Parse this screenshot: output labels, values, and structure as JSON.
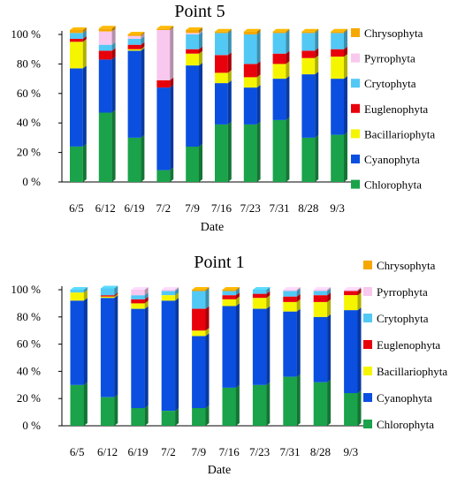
{
  "chart_data": [
    {
      "type": "bar",
      "stacked": true,
      "title": "Point 5",
      "xlabel": "Date",
      "ylabel": "",
      "ylim": [
        0,
        100
      ],
      "y_ticks": [
        "0 %",
        "20 %",
        "40 %",
        "60 %",
        "80 %",
        "100 %"
      ],
      "legend_position": "right",
      "categories": [
        "6/5",
        "6/12",
        "6/19",
        "7/2",
        "7/9",
        "7/16",
        "7/23",
        "7/31",
        "8/28",
        "9/3"
      ],
      "series": [
        {
          "name": "Chlorophyta",
          "color": "#1aa34a",
          "values": [
            24,
            47,
            30,
            8,
            24,
            39,
            39,
            42,
            30,
            32
          ]
        },
        {
          "name": "Cyanophyta",
          "color": "#0a4fe0",
          "values": [
            53,
            36,
            59,
            56,
            55,
            28,
            25,
            28,
            43,
            38
          ]
        },
        {
          "name": "Bacillariophyta",
          "color": "#f5f500",
          "values": [
            18,
            0,
            1,
            0,
            8,
            7,
            7,
            10,
            11,
            15
          ]
        },
        {
          "name": "Euglenophyta",
          "color": "#e8000b",
          "values": [
            2,
            6,
            3,
            5,
            3,
            12,
            9,
            7,
            5,
            5
          ]
        },
        {
          "name": "Crytophyta",
          "color": "#52c8f5",
          "values": [
            4,
            4,
            4,
            0,
            10,
            15,
            20,
            14,
            12,
            11
          ]
        },
        {
          "name": "Pyrrophyta",
          "color": "#f8c8ee",
          "values": [
            0,
            9,
            2,
            34,
            1,
            0,
            0,
            0,
            0,
            0
          ]
        },
        {
          "name": "Chrysophyta",
          "color": "#f5a800",
          "values": [
            2,
            2,
            1,
            1,
            2,
            1,
            2,
            1,
            1,
            1
          ]
        }
      ]
    },
    {
      "type": "bar",
      "stacked": true,
      "title": "Point 1",
      "xlabel": "Date",
      "ylabel": "",
      "ylim": [
        0,
        100
      ],
      "y_ticks": [
        "0 %",
        "20 %",
        "40 %",
        "60 %",
        "80 %",
        "100 %"
      ],
      "legend_position": "right",
      "categories": [
        "6/5",
        "6/12",
        "6/19",
        "7/2",
        "7/9",
        "7/16",
        "7/23",
        "7/31",
        "8/28",
        "9/3"
      ],
      "series": [
        {
          "name": "Chlorophyta",
          "color": "#1aa34a",
          "values": [
            30,
            21,
            13,
            11,
            13,
            28,
            30,
            36,
            32,
            24
          ]
        },
        {
          "name": "Cyanophyta",
          "color": "#0a4fe0",
          "values": [
            62,
            73,
            73,
            81,
            53,
            60,
            56,
            48,
            48,
            61
          ]
        },
        {
          "name": "Bacillariophyta",
          "color": "#f5f500",
          "values": [
            6,
            1,
            4,
            4,
            4,
            5,
            8,
            7,
            11,
            11
          ]
        },
        {
          "name": "Euglenophyta",
          "color": "#e8000b",
          "values": [
            0,
            1,
            3,
            0,
            16,
            3,
            3,
            4,
            5,
            3
          ]
        },
        {
          "name": "Crytophyta",
          "color": "#52c8f5",
          "values": [
            2,
            5,
            3,
            3,
            13,
            3,
            3,
            4,
            3,
            0
          ]
        },
        {
          "name": "Pyrrophyta",
          "color": "#f8c8ee",
          "values": [
            0,
            0,
            4,
            1,
            0,
            0,
            0,
            1,
            1,
            1
          ]
        },
        {
          "name": "Chrysophyta",
          "color": "#f5a800",
          "values": [
            0,
            0,
            0,
            0,
            1,
            1,
            0,
            0,
            0,
            0
          ]
        }
      ]
    }
  ]
}
